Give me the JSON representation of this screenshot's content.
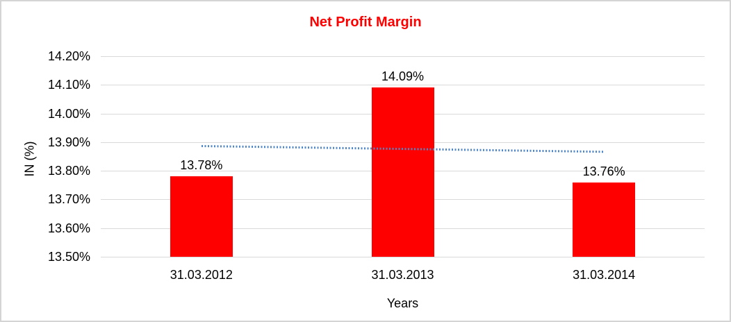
{
  "chart_data": {
    "type": "bar",
    "title": "Net Profit Margin",
    "xlabel": "Years",
    "ylabel": "IN (%)",
    "categories": [
      "31.03.2012",
      "31.03.2013",
      "31.03.2014"
    ],
    "values": [
      13.78,
      14.09,
      13.76
    ],
    "value_labels": [
      "13.78%",
      "14.09%",
      "13.76%"
    ],
    "ylim": [
      13.5,
      14.2
    ],
    "ytick_step": 0.1,
    "ytick_labels": [
      "14.20%",
      "14.10%",
      "14.00%",
      "13.90%",
      "13.80%",
      "13.70%",
      "13.60%",
      "13.50%"
    ],
    "grid": true,
    "legend": "none",
    "colors": {
      "bar": "#ff0000",
      "title": "#ff0000",
      "gridline": "#d9d9d9",
      "trendline": "#4e86c8",
      "text": "#000000"
    },
    "trendline": {
      "type": "linear",
      "style": "dotted",
      "start_value": 13.887,
      "end_value": 13.867
    }
  }
}
